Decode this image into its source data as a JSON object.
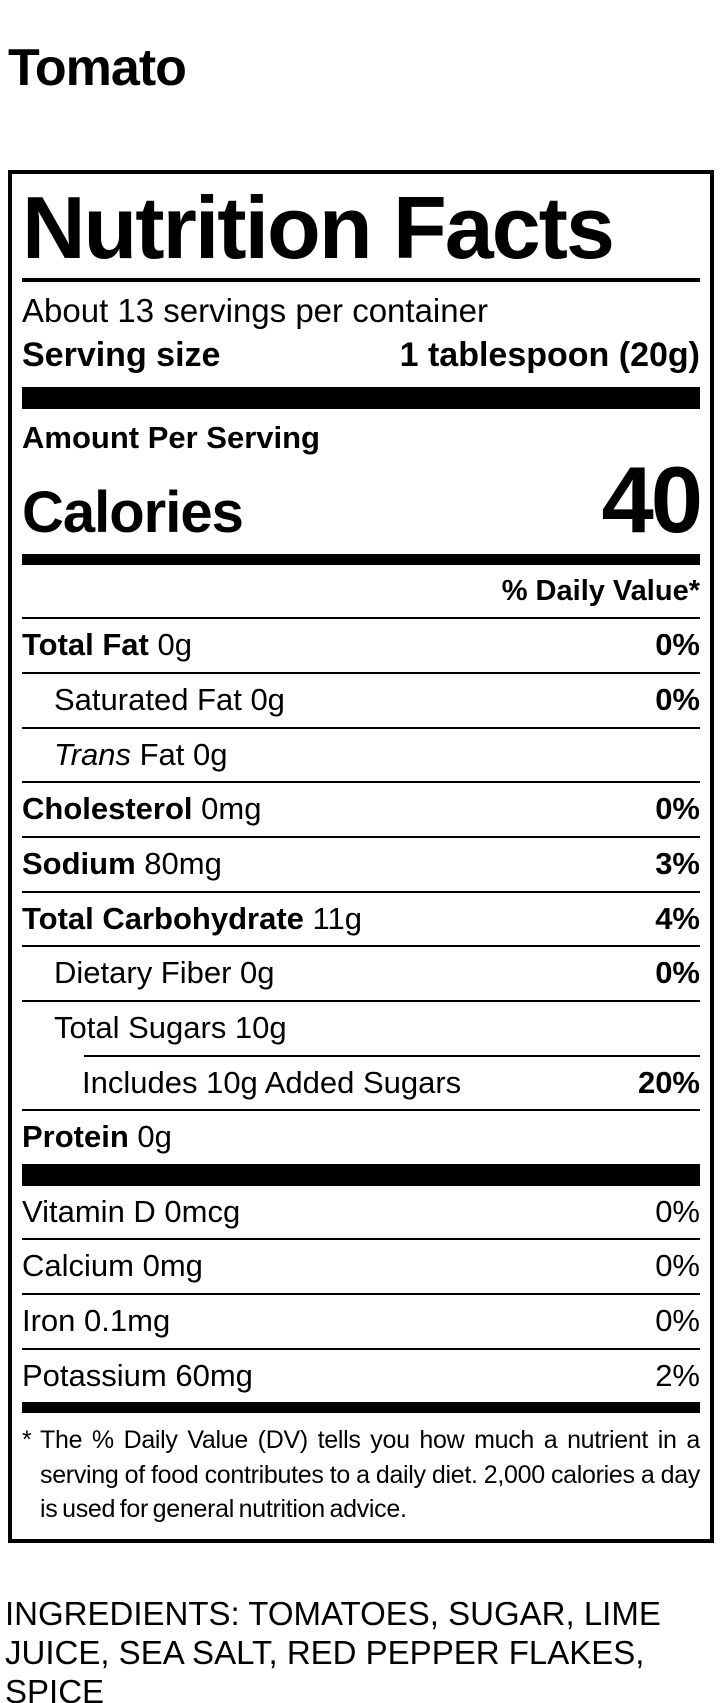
{
  "page": {
    "product_title": "Tomato"
  },
  "colors": {
    "text": "#000000",
    "background": "#ffffff",
    "rule": "#000000"
  },
  "label": {
    "title": "Nutrition Facts",
    "servings_per_container": "About 13 servings per container",
    "serving_size": {
      "label": "Serving size",
      "value": "1 tablespoon (20g)"
    },
    "amount_per_serving": "Amount Per Serving",
    "calories": {
      "label": "Calories",
      "value": "40"
    },
    "daily_value_header": "% Daily Value*",
    "nutrient_rows": [
      {
        "bold": "Total Fat",
        "rest": " 0g",
        "dv": "0%"
      },
      {
        "rest": "Saturated Fat 0g",
        "dv": "0%"
      },
      {
        "italic": "Trans",
        "rest": " Fat 0g",
        "dv": ""
      },
      {
        "bold": "Cholesterol",
        "rest": " 0mg",
        "dv": "0%"
      },
      {
        "bold": "Sodium",
        "rest": " 80mg",
        "dv": "3%"
      },
      {
        "bold": "Total Carbohydrate",
        "rest": " 11g",
        "dv": "4%"
      },
      {
        "rest": "Dietary Fiber 0g",
        "dv": "0%"
      },
      {
        "rest": "Total Sugars 10g",
        "dv": ""
      },
      {
        "rest": "Includes 10g Added Sugars",
        "dv": "20%"
      },
      {
        "bold": "Protein",
        "rest": " 0g",
        "dv": ""
      }
    ],
    "micronutrient_rows": [
      {
        "text": "Vitamin D 0mcg",
        "dv": "0%"
      },
      {
        "text": "Calcium 0mg",
        "dv": "0%"
      },
      {
        "text": "Iron 0.1mg",
        "dv": "0%"
      },
      {
        "text": "Potassium 60mg",
        "dv": "2%"
      }
    ],
    "footnote_marker": "*",
    "footnote": "The % Daily Value (DV) tells you how much a nutrient in a serving of food contributes to a daily diet. 2,000 calories a day is used for general nutrition advice."
  },
  "ingredients": "INGREDIENTS: TOMATOES, SUGAR, LIME JUICE, SEA SALT, RED PEPPER FLAKES, SPICE"
}
